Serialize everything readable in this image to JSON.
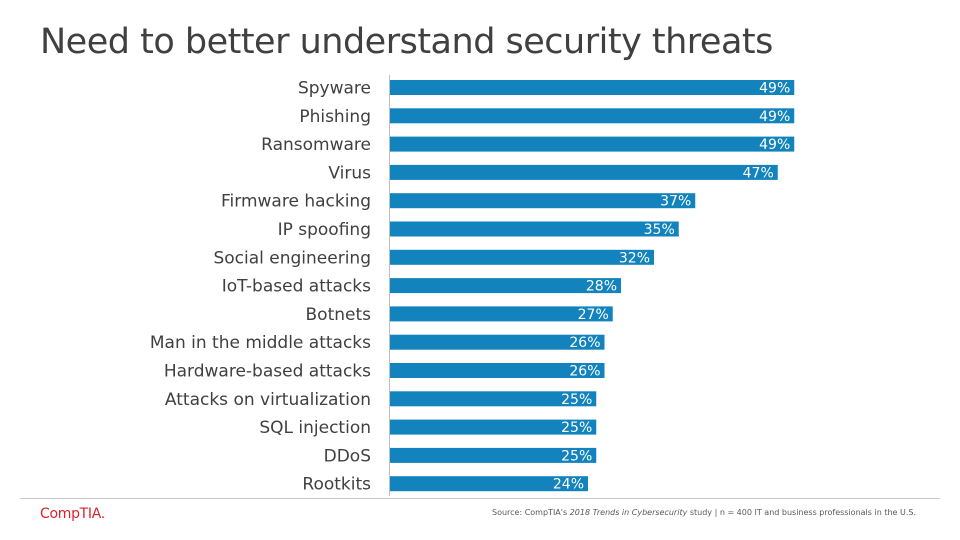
{
  "title": "Need to better understand security threats",
  "colors": {
    "bar": "#1283bd",
    "title": "#404040",
    "brand": "#d9242b"
  },
  "chart_data": {
    "type": "bar",
    "orientation": "horizontal",
    "categories": [
      "Spyware",
      "Phishing",
      "Ransomware",
      "Virus",
      "Firmware hacking",
      "IP spoofing",
      "Social engineering",
      "IoT-based attacks",
      "Botnets",
      "Man in the middle attacks",
      "Hardware-based attacks",
      "Attacks on virtualization",
      "SQL injection",
      "DDoS",
      "Rootkits"
    ],
    "values": [
      49,
      49,
      49,
      47,
      37,
      35,
      32,
      28,
      27,
      26,
      26,
      25,
      25,
      25,
      24
    ],
    "value_labels": [
      "49%",
      "49%",
      "49%",
      "47%",
      "37%",
      "35%",
      "32%",
      "28%",
      "27%",
      "26%",
      "26%",
      "25%",
      "25%",
      "25%",
      "24%"
    ],
    "unit": "%",
    "xlim": [
      0,
      50
    ]
  },
  "footer": {
    "logo": "CompTIA.",
    "source_prefix": "Source: CompTIA's ",
    "source_italic": "2018 Trends in Cybersecurity",
    "source_suffix": " study | n = 400 IT and business professionals in the U.S."
  }
}
